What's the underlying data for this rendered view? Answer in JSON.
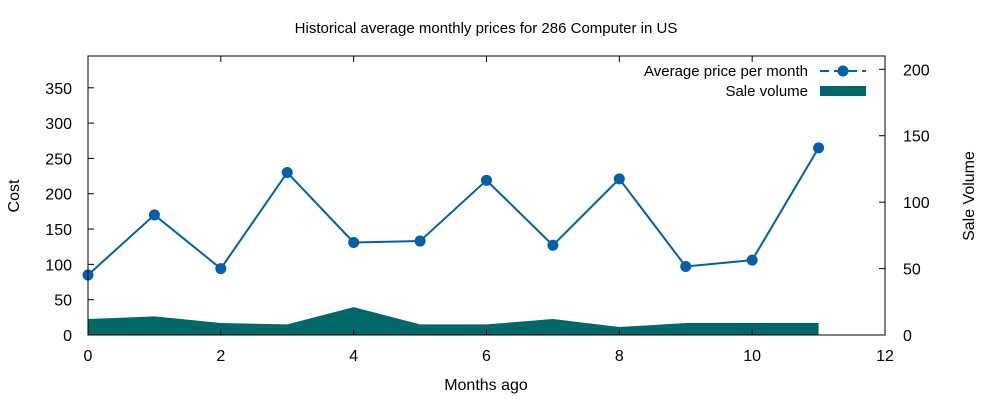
{
  "chart_data": {
    "type": "line",
    "title": "Historical average monthly prices for 286 Computer in US",
    "xlabel": "Months ago",
    "ylabel": "Cost",
    "y2label": "Sale Volume",
    "xlim": [
      0,
      12
    ],
    "ylim": [
      0,
      395
    ],
    "y2lim": [
      0,
      210
    ],
    "xticks": [
      0,
      2,
      4,
      6,
      8,
      10,
      12
    ],
    "yticks": [
      0,
      50,
      100,
      150,
      200,
      250,
      300,
      350
    ],
    "y2ticks": [
      0,
      50,
      100,
      150,
      200
    ],
    "grid": false,
    "legend_position": "top-right",
    "series": [
      {
        "name": "Average price per month",
        "kind": "line",
        "axis": "left",
        "color": "#0060ad",
        "x": [
          0,
          1,
          2,
          3,
          4,
          5,
          6,
          7,
          8,
          9,
          10,
          11
        ],
        "values": [
          85,
          170,
          94,
          230,
          131,
          133,
          219,
          127,
          221,
          97,
          106,
          265
        ]
      },
      {
        "name": "Sale volume",
        "kind": "area",
        "axis": "right",
        "color": "#006868",
        "x": [
          0,
          1,
          2,
          3,
          4,
          5,
          6,
          7,
          8,
          9,
          10,
          11
        ],
        "values": [
          12,
          14,
          9,
          8,
          21,
          8,
          8,
          12,
          6,
          9,
          9,
          9
        ]
      }
    ]
  }
}
